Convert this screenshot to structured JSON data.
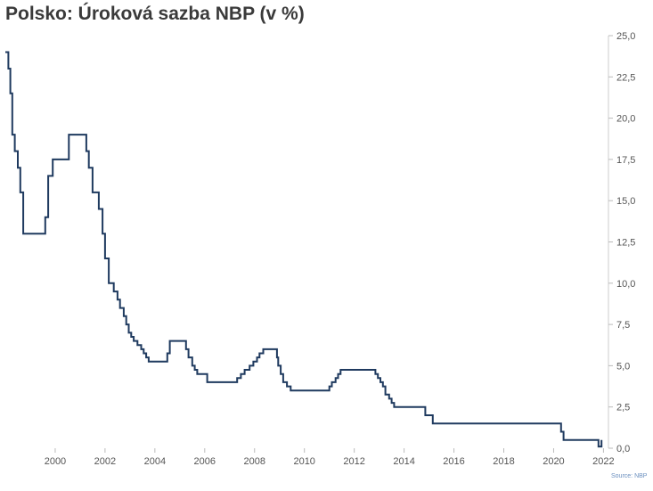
{
  "chart_data": {
    "type": "line",
    "title": "Polsko: Úroková sazba NBP (v %)",
    "source": "Source: NBP",
    "xlabel": "",
    "ylabel": "",
    "xlim": [
      1998.0,
      2022.2
    ],
    "ylim": [
      0,
      25
    ],
    "x_ticks": [
      2000,
      2002,
      2004,
      2006,
      2008,
      2010,
      2012,
      2014,
      2016,
      2018,
      2020,
      2022
    ],
    "y_ticks": [
      0,
      2.5,
      5,
      7.5,
      10,
      12.5,
      15,
      17.5,
      20,
      22.5,
      25
    ],
    "y_tick_labels": [
      "0,0",
      "2,5",
      "5,0",
      "7,5",
      "10,0",
      "12,5",
      "15,0",
      "17,5",
      "20,0",
      "22,5",
      "25,0"
    ],
    "y_axis_position": "right",
    "grid": false,
    "color": "#1f3a5f",
    "series": [
      {
        "step": true,
        "x": [
          1998.0,
          1998.12,
          1998.2,
          1998.28,
          1998.38,
          1998.5,
          1998.6,
          1998.72,
          1998.85,
          1999.6,
          1999.72,
          1999.9,
          2000.1,
          2000.55,
          2000.8,
          2001.25,
          2001.35,
          2001.5,
          2001.75,
          2001.9,
          2002.0,
          2002.15,
          2002.35,
          2002.5,
          2002.6,
          2002.75,
          2002.85,
          2002.95,
          2003.05,
          2003.15,
          2003.3,
          2003.45,
          2003.55,
          2003.65,
          2003.75,
          2003.85,
          2004.5,
          2004.6,
          2004.7,
          2005.25,
          2005.35,
          2005.5,
          2005.6,
          2005.7,
          2005.85,
          2006.1,
          2007.3,
          2007.45,
          2007.6,
          2007.8,
          2007.95,
          2008.1,
          2008.2,
          2008.35,
          2008.5,
          2008.9,
          2008.95,
          2009.05,
          2009.15,
          2009.3,
          2009.45,
          2011.0,
          2011.1,
          2011.25,
          2011.35,
          2011.45,
          2012.35,
          2012.85,
          2012.95,
          2013.05,
          2013.15,
          2013.25,
          2013.4,
          2013.5,
          2013.6,
          2014.7,
          2014.85,
          2015.15,
          2020.2,
          2020.3,
          2020.4,
          2021.8,
          2021.92
        ],
        "values": [
          24,
          23,
          21.5,
          19,
          18,
          17,
          15.5,
          13,
          13,
          14,
          16.5,
          17.5,
          17.5,
          19,
          19,
          18,
          17,
          15.5,
          14.5,
          13,
          11.5,
          10,
          9.5,
          9,
          8.5,
          8,
          7.5,
          7,
          6.75,
          6.5,
          6.25,
          6,
          5.75,
          5.5,
          5.25,
          5.25,
          5.75,
          6.5,
          6.5,
          6,
          5.5,
          5,
          4.75,
          4.5,
          4.5,
          4,
          4.25,
          4.5,
          4.75,
          5,
          5.25,
          5.5,
          5.75,
          6,
          6,
          5.5,
          5,
          4.5,
          4,
          3.75,
          3.5,
          3.75,
          4,
          4.25,
          4.5,
          4.75,
          4.75,
          4.5,
          4.25,
          4,
          3.75,
          3.25,
          3,
          2.75,
          2.5,
          2.5,
          2,
          1.5,
          1.5,
          1,
          0.5,
          0.1,
          0.5
        ]
      }
    ]
  }
}
